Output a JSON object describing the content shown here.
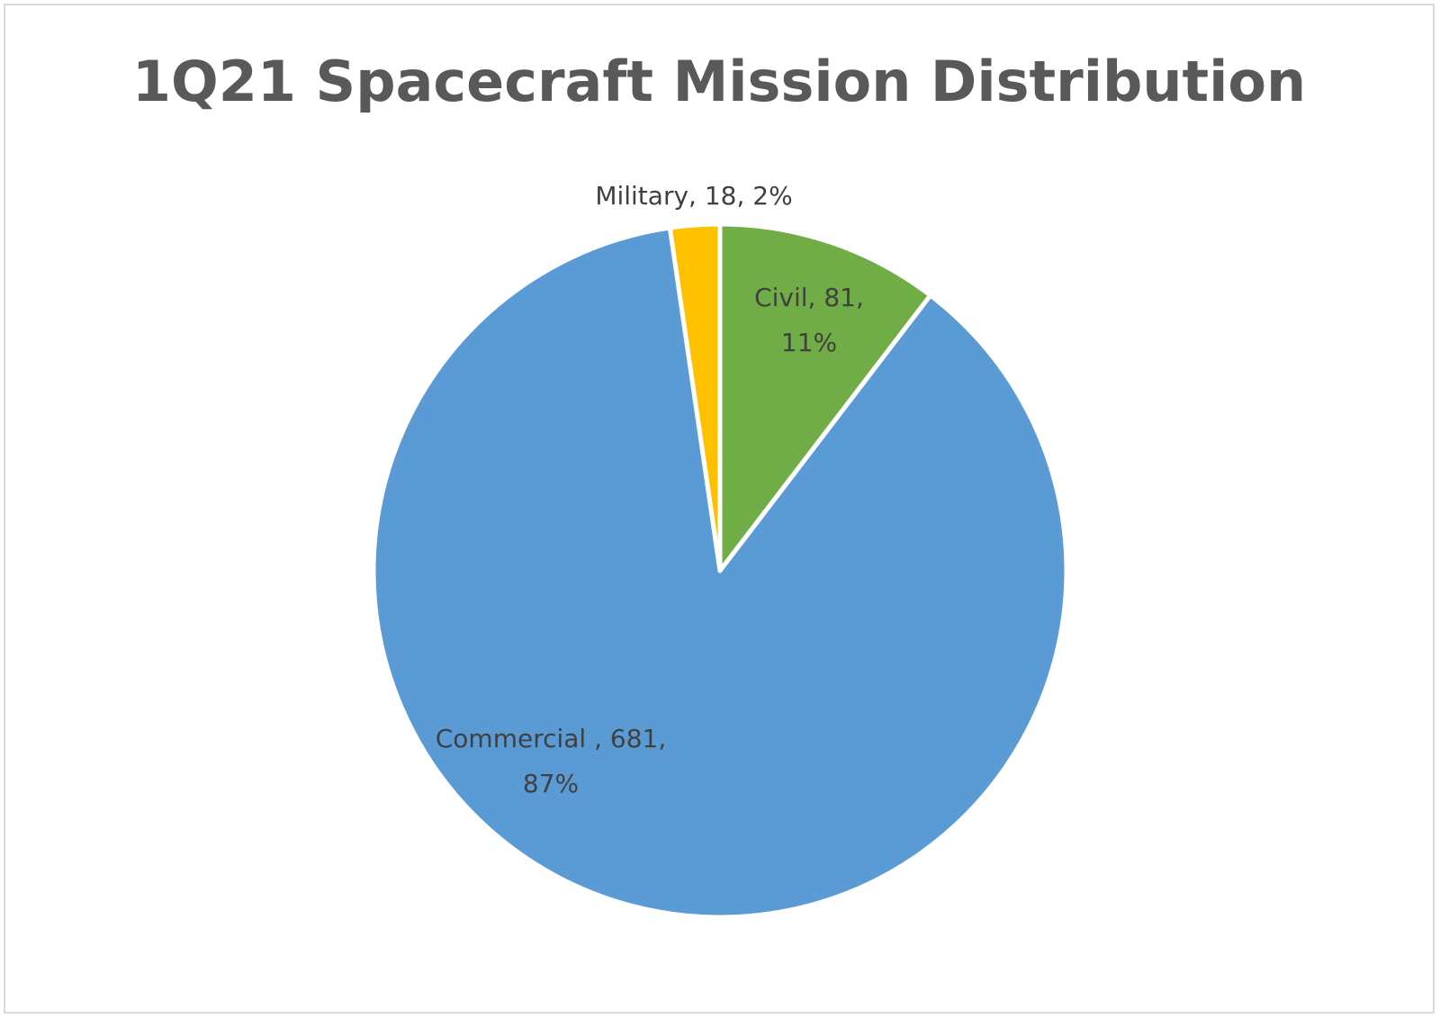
{
  "chart_data": {
    "type": "pie",
    "title": "1Q21 Spacecraft Mission Distribution",
    "slices": [
      {
        "name": "Civil",
        "value": 81,
        "percent": "11%",
        "color": "#70ad47",
        "label_lines": [
          "Civil, 81,",
          "11%"
        ]
      },
      {
        "name": "Commercial ",
        "value": 681,
        "percent": "87%",
        "color": "#5b9bd5",
        "label_lines": [
          "Commercial , 681,",
          "87%"
        ]
      },
      {
        "name": "Military",
        "value": 18,
        "percent": "2%",
        "color": "#ffc000",
        "label_lines": [
          "Military, 18, 2%"
        ]
      }
    ],
    "start": "12 o'clock",
    "direction": "clockwise",
    "legend": "none"
  }
}
